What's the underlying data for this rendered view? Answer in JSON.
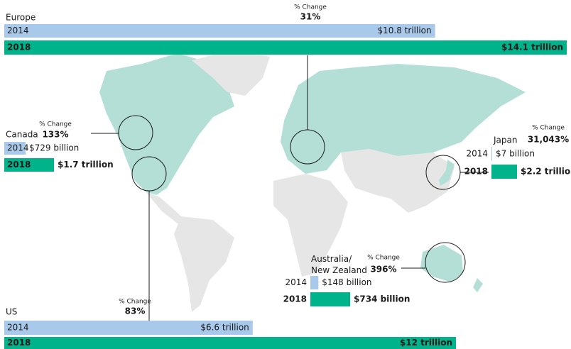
{
  "chart_data": [
    {
      "type": "bar",
      "title": "Europe",
      "change_title": "% Change",
      "change_label": "31%",
      "categories": [
        "2014",
        "2018"
      ],
      "colors": [
        "#a9c9eb",
        "#00b38a"
      ],
      "values": [
        10.8,
        14.1
      ],
      "value_labels": [
        "$10.8 trillion",
        "$14.1 trillion"
      ]
    },
    {
      "type": "bar",
      "title": "Canada",
      "change_title": "% Change",
      "change_label": "133%",
      "categories": [
        "2014",
        "2018"
      ],
      "colors": [
        "#a9c9eb",
        "#00b38a"
      ],
      "values": [
        0.729,
        1.7
      ],
      "value_labels": [
        "$729 billion",
        "$1.7 trillion"
      ]
    },
    {
      "type": "bar",
      "title": "US",
      "change_title": "% Change",
      "change_label": "83%",
      "categories": [
        "2014",
        "2018"
      ],
      "colors": [
        "#a9c9eb",
        "#00b38a"
      ],
      "values": [
        6.6,
        12
      ],
      "value_labels": [
        "$6.6 trillion",
        "$12 trillion"
      ]
    },
    {
      "type": "bar",
      "title": "Japan",
      "change_title": "% Change",
      "change_label": "31,043%",
      "categories": [
        "2014",
        "2018"
      ],
      "colors": [
        "#a9c9eb",
        "#00b38a"
      ],
      "values": [
        0.007,
        2.2
      ],
      "value_labels": [
        "$7 billion",
        "$2.2 trillion"
      ]
    },
    {
      "type": "bar",
      "title": "Australia/ New Zealand",
      "change_title": "% Change",
      "change_label": "396%",
      "categories": [
        "2014",
        "2018"
      ],
      "colors": [
        "#a9c9eb",
        "#00b38a"
      ],
      "values": [
        0.148,
        0.734
      ],
      "value_labels": [
        "$148 billion",
        "$734 billion"
      ]
    }
  ]
}
